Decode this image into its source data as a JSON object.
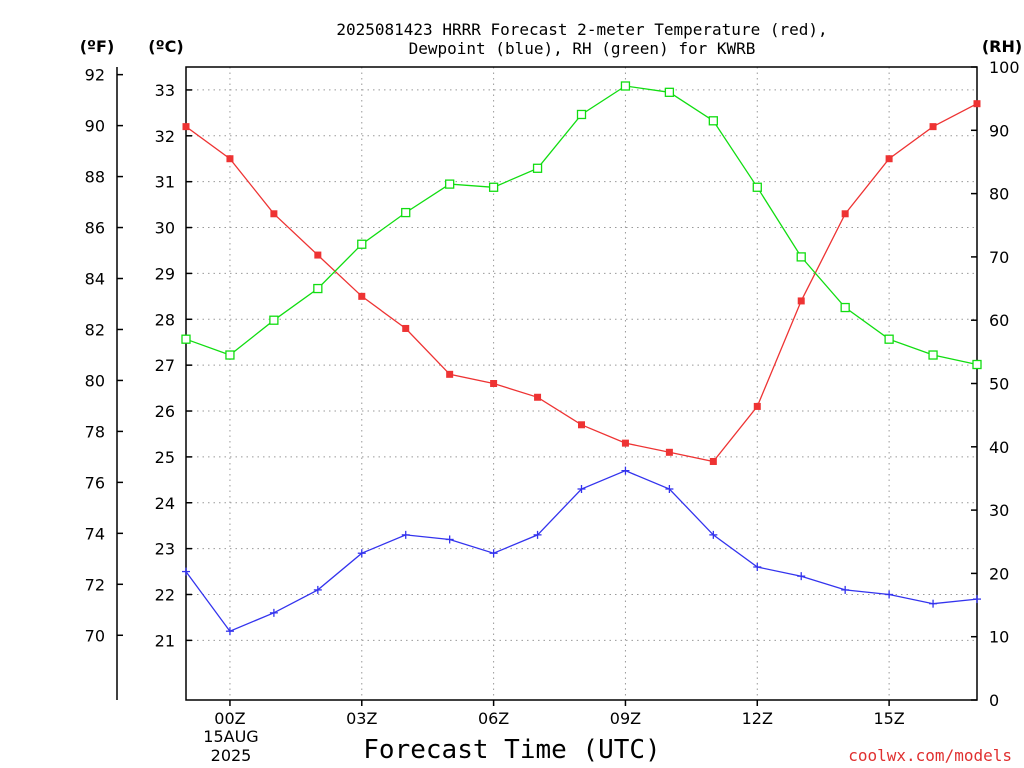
{
  "chart_data": {
    "type": "line",
    "title_lines": [
      "2025081423 HRRR Forecast 2-meter Temperature (red),",
      "Dewpoint (blue), RH (green) for KWRB"
    ],
    "xlabel": "Forecast Time (UTC)",
    "x_hours": [
      -1,
      0,
      1,
      2,
      3,
      4,
      5,
      6,
      7,
      8,
      9,
      10,
      11,
      12,
      13,
      14,
      15,
      16,
      17
    ],
    "x_ticks": [
      {
        "hour": 0,
        "label": "00Z"
      },
      {
        "hour": 3,
        "label": "03Z"
      },
      {
        "hour": 6,
        "label": "06Z"
      },
      {
        "hour": 9,
        "label": "09Z"
      },
      {
        "hour": 12,
        "label": "12Z"
      },
      {
        "hour": 15,
        "label": "15Z"
      }
    ],
    "date_line_1": "15AUG",
    "date_line_2": "2025",
    "xlim": [
      -1,
      17
    ],
    "celsius_axis": {
      "unit_label": "(ºC)",
      "ylim": [
        19.7,
        33.5
      ],
      "ticks": [
        21,
        22,
        23,
        24,
        25,
        26,
        27,
        28,
        29,
        30,
        31,
        32,
        33
      ]
    },
    "fahrenheit_axis": {
      "unit_label": "(ºF)",
      "ticks": [
        70,
        72,
        74,
        76,
        78,
        80,
        82,
        84,
        86,
        88,
        90,
        92
      ]
    },
    "rh_axis": {
      "unit_label": "(RH)",
      "ylim": [
        0,
        100
      ],
      "ticks": [
        0,
        10,
        20,
        30,
        40,
        50,
        60,
        70,
        80,
        90,
        100
      ]
    },
    "series": [
      {
        "name": "Temperature",
        "axis": "celsius",
        "color": "#ee3333",
        "marker": "filled-square",
        "values": [
          32.2,
          31.5,
          30.3,
          29.4,
          28.5,
          27.8,
          26.8,
          26.6,
          26.3,
          25.7,
          25.3,
          25.1,
          24.9,
          26.1,
          28.4,
          30.3,
          31.5,
          32.2,
          32.7
        ]
      },
      {
        "name": "Dewpoint",
        "axis": "celsius",
        "color": "#3333ee",
        "marker": "plus",
        "values": [
          22.5,
          21.2,
          21.6,
          22.1,
          22.9,
          23.3,
          23.2,
          22.9,
          23.3,
          24.3,
          24.7,
          24.3,
          23.3,
          22.6,
          22.4,
          22.1,
          22.0,
          21.8,
          21.9
        ]
      },
      {
        "name": "RH",
        "axis": "rh",
        "color": "#11dd11",
        "marker": "open-square",
        "values": [
          57,
          54.5,
          60,
          65,
          72,
          77,
          81.5,
          81,
          84,
          92.5,
          97,
          96,
          91.5,
          81,
          70,
          62,
          57,
          54.5,
          53
        ]
      }
    ],
    "grid": true
  },
  "watermark": {
    "text": "coolwx.com/models",
    "color": "#e03030"
  }
}
